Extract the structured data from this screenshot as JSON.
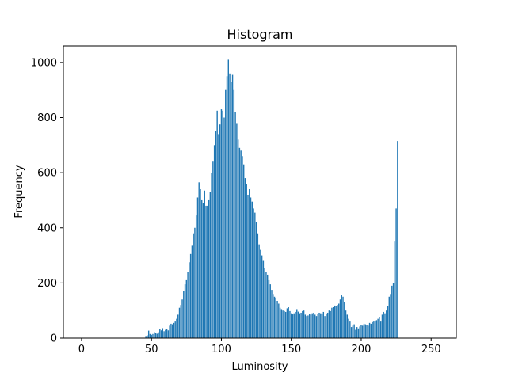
{
  "chart_data": {
    "type": "bar",
    "title": "Histogram",
    "xlabel": "Luminosity",
    "ylabel": "Frequency",
    "xlim": [
      -13,
      268
    ],
    "ylim": [
      0,
      1060
    ],
    "xticks": [
      0,
      50,
      100,
      150,
      200,
      250
    ],
    "yticks": [
      0,
      200,
      400,
      600,
      800,
      1000
    ],
    "grid": false,
    "bar_color": "#1f77b4",
    "x_start": 0,
    "values": [
      0,
      0,
      0,
      0,
      0,
      0,
      0,
      0,
      0,
      0,
      0,
      0,
      0,
      0,
      0,
      0,
      0,
      0,
      0,
      0,
      0,
      0,
      0,
      0,
      0,
      0,
      0,
      0,
      0,
      0,
      0,
      0,
      0,
      0,
      0,
      0,
      0,
      0,
      0,
      0,
      0,
      0,
      0,
      0,
      0,
      0,
      5,
      10,
      27,
      15,
      12,
      15,
      22,
      20,
      16,
      21,
      33,
      28,
      36,
      25,
      30,
      33,
      28,
      45,
      52,
      50,
      55,
      60,
      70,
      85,
      110,
      120,
      140,
      170,
      195,
      210,
      240,
      275,
      305,
      335,
      380,
      400,
      445,
      510,
      565,
      540,
      500,
      490,
      535,
      480,
      480,
      500,
      530,
      600,
      640,
      700,
      750,
      825,
      740,
      775,
      830,
      825,
      800,
      900,
      950,
      1010,
      960,
      930,
      955,
      900,
      820,
      780,
      720,
      690,
      680,
      660,
      630,
      580,
      560,
      520,
      540,
      510,
      495,
      470,
      455,
      420,
      380,
      340,
      320,
      300,
      280,
      255,
      240,
      230,
      210,
      195,
      175,
      160,
      150,
      145,
      135,
      125,
      110,
      105,
      100,
      98,
      95,
      108,
      112,
      98,
      90,
      86,
      90,
      95,
      105,
      96,
      90,
      92,
      98,
      100,
      85,
      80,
      82,
      88,
      85,
      90,
      92,
      85,
      80,
      88,
      92,
      90,
      86,
      95,
      80,
      88,
      92,
      100,
      98,
      110,
      112,
      118,
      115,
      120,
      125,
      140,
      155,
      150,
      130,
      100,
      85,
      70,
      60,
      40,
      45,
      50,
      30,
      40,
      35,
      42,
      48,
      45,
      52,
      50,
      48,
      45,
      55,
      52,
      58,
      60,
      62,
      65,
      70,
      75,
      60,
      85,
      95,
      90,
      100,
      115,
      150,
      160,
      190,
      200,
      350,
      470,
      715
    ]
  }
}
